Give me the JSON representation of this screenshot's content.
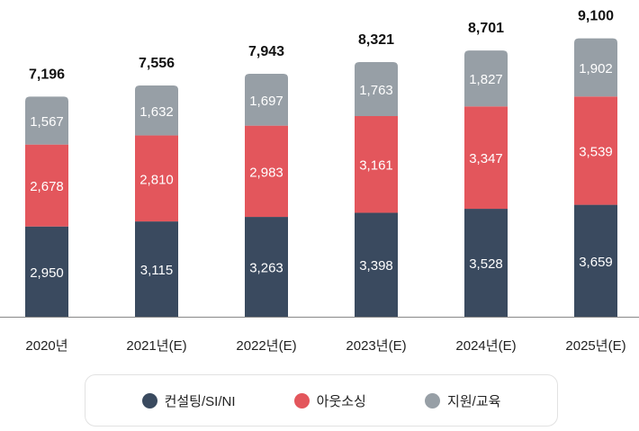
{
  "chart_data": {
    "type": "bar",
    "stacked": true,
    "categories": [
      "2020년",
      "2021년(E)",
      "2022년(E)",
      "2023년(E)",
      "2024년(E)",
      "2025년(E)"
    ],
    "series": [
      {
        "name": "컨설팅/SI/NI",
        "color": "#3a4a5f",
        "values": [
          2950,
          3115,
          3263,
          3398,
          3528,
          3659
        ]
      },
      {
        "name": "아웃소싱",
        "color": "#e3565c",
        "values": [
          2678,
          2810,
          2983,
          3161,
          3347,
          3539
        ]
      },
      {
        "name": "지원/교육",
        "color": "#979fa6",
        "values": [
          1567,
          1632,
          1697,
          1763,
          1827,
          1902
        ]
      }
    ],
    "totals": [
      7196,
      7556,
      7943,
      8321,
      8701,
      9100
    ],
    "ylim": [
      0,
      10300
    ],
    "grid": false,
    "legend_position": "bottom"
  }
}
